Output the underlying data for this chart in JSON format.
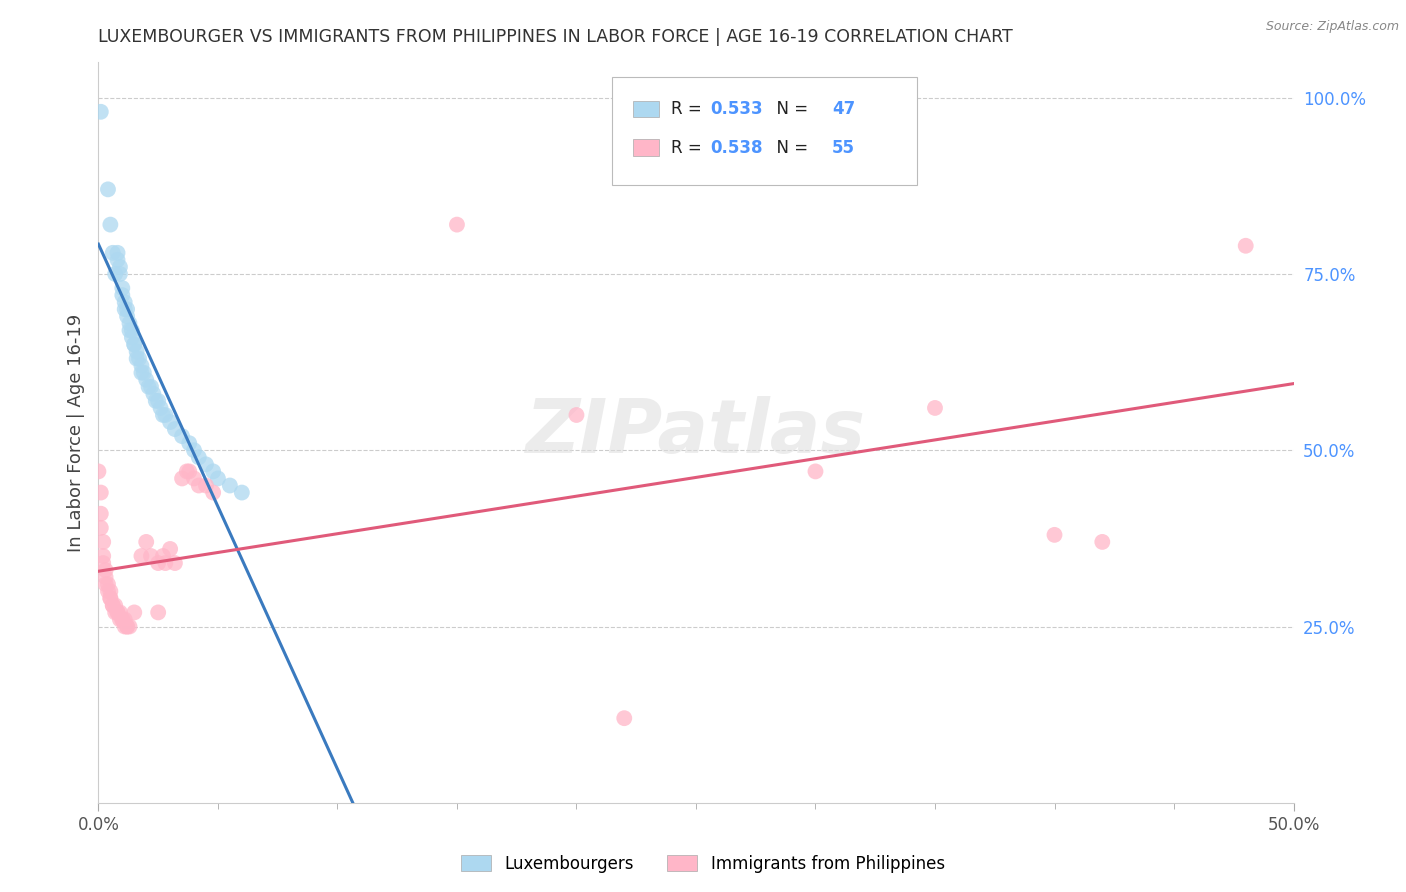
{
  "title": "LUXEMBOURGER VS IMMIGRANTS FROM PHILIPPINES IN LABOR FORCE | AGE 16-19 CORRELATION CHART",
  "source": "Source: ZipAtlas.com",
  "ylabel": "In Labor Force | Age 16-19",
  "xlim": [
    0.0,
    0.5
  ],
  "ylim": [
    0.0,
    1.05
  ],
  "blue_R": 0.533,
  "blue_N": 47,
  "pink_R": 0.538,
  "pink_N": 55,
  "blue_color": "#add8f0",
  "pink_color": "#ffb6c8",
  "blue_line_color": "#3a7abf",
  "pink_line_color": "#e05a7a",
  "legend_label_blue": "Luxembourgers",
  "legend_label_pink": "Immigrants from Philippines",
  "blue_scatter": [
    [
      0.001,
      0.98
    ],
    [
      0.004,
      0.87
    ],
    [
      0.005,
      0.82
    ],
    [
      0.006,
      0.78
    ],
    [
      0.007,
      0.75
    ],
    [
      0.008,
      0.78
    ],
    [
      0.008,
      0.77
    ],
    [
      0.009,
      0.76
    ],
    [
      0.009,
      0.75
    ],
    [
      0.01,
      0.73
    ],
    [
      0.01,
      0.72
    ],
    [
      0.011,
      0.71
    ],
    [
      0.011,
      0.7
    ],
    [
      0.012,
      0.7
    ],
    [
      0.012,
      0.69
    ],
    [
      0.013,
      0.68
    ],
    [
      0.013,
      0.67
    ],
    [
      0.014,
      0.67
    ],
    [
      0.014,
      0.66
    ],
    [
      0.015,
      0.65
    ],
    [
      0.015,
      0.65
    ],
    [
      0.016,
      0.64
    ],
    [
      0.016,
      0.63
    ],
    [
      0.017,
      0.63
    ],
    [
      0.018,
      0.62
    ],
    [
      0.018,
      0.61
    ],
    [
      0.019,
      0.61
    ],
    [
      0.02,
      0.6
    ],
    [
      0.021,
      0.59
    ],
    [
      0.022,
      0.59
    ],
    [
      0.023,
      0.58
    ],
    [
      0.024,
      0.57
    ],
    [
      0.025,
      0.57
    ],
    [
      0.026,
      0.56
    ],
    [
      0.027,
      0.55
    ],
    [
      0.028,
      0.55
    ],
    [
      0.03,
      0.54
    ],
    [
      0.032,
      0.53
    ],
    [
      0.035,
      0.52
    ],
    [
      0.038,
      0.51
    ],
    [
      0.04,
      0.5
    ],
    [
      0.042,
      0.49
    ],
    [
      0.045,
      0.48
    ],
    [
      0.048,
      0.47
    ],
    [
      0.05,
      0.46
    ],
    [
      0.055,
      0.45
    ],
    [
      0.06,
      0.44
    ]
  ],
  "pink_scatter": [
    [
      0.0,
      0.47
    ],
    [
      0.001,
      0.44
    ],
    [
      0.001,
      0.41
    ],
    [
      0.001,
      0.39
    ],
    [
      0.002,
      0.37
    ],
    [
      0.002,
      0.35
    ],
    [
      0.002,
      0.34
    ],
    [
      0.003,
      0.33
    ],
    [
      0.003,
      0.32
    ],
    [
      0.003,
      0.31
    ],
    [
      0.004,
      0.31
    ],
    [
      0.004,
      0.3
    ],
    [
      0.005,
      0.3
    ],
    [
      0.005,
      0.29
    ],
    [
      0.005,
      0.29
    ],
    [
      0.006,
      0.28
    ],
    [
      0.006,
      0.28
    ],
    [
      0.007,
      0.28
    ],
    [
      0.007,
      0.27
    ],
    [
      0.008,
      0.27
    ],
    [
      0.008,
      0.27
    ],
    [
      0.009,
      0.27
    ],
    [
      0.009,
      0.26
    ],
    [
      0.01,
      0.26
    ],
    [
      0.01,
      0.26
    ],
    [
      0.011,
      0.26
    ],
    [
      0.011,
      0.25
    ],
    [
      0.012,
      0.25
    ],
    [
      0.012,
      0.25
    ],
    [
      0.013,
      0.25
    ],
    [
      0.015,
      0.27
    ],
    [
      0.018,
      0.35
    ],
    [
      0.02,
      0.37
    ],
    [
      0.022,
      0.35
    ],
    [
      0.025,
      0.34
    ],
    [
      0.025,
      0.27
    ],
    [
      0.027,
      0.35
    ],
    [
      0.028,
      0.34
    ],
    [
      0.03,
      0.36
    ],
    [
      0.032,
      0.34
    ],
    [
      0.035,
      0.46
    ],
    [
      0.037,
      0.47
    ],
    [
      0.038,
      0.47
    ],
    [
      0.04,
      0.46
    ],
    [
      0.042,
      0.45
    ],
    [
      0.045,
      0.45
    ],
    [
      0.048,
      0.44
    ],
    [
      0.15,
      0.82
    ],
    [
      0.2,
      0.55
    ],
    [
      0.22,
      0.12
    ],
    [
      0.3,
      0.47
    ],
    [
      0.35,
      0.56
    ],
    [
      0.4,
      0.38
    ],
    [
      0.42,
      0.37
    ],
    [
      0.48,
      0.79
    ]
  ],
  "background_color": "#ffffff",
  "grid_color": "#cccccc",
  "title_color": "#333333",
  "right_axis_color": "#4d94ff",
  "accent_color": "#4d94ff",
  "watermark": "ZIPatlas"
}
